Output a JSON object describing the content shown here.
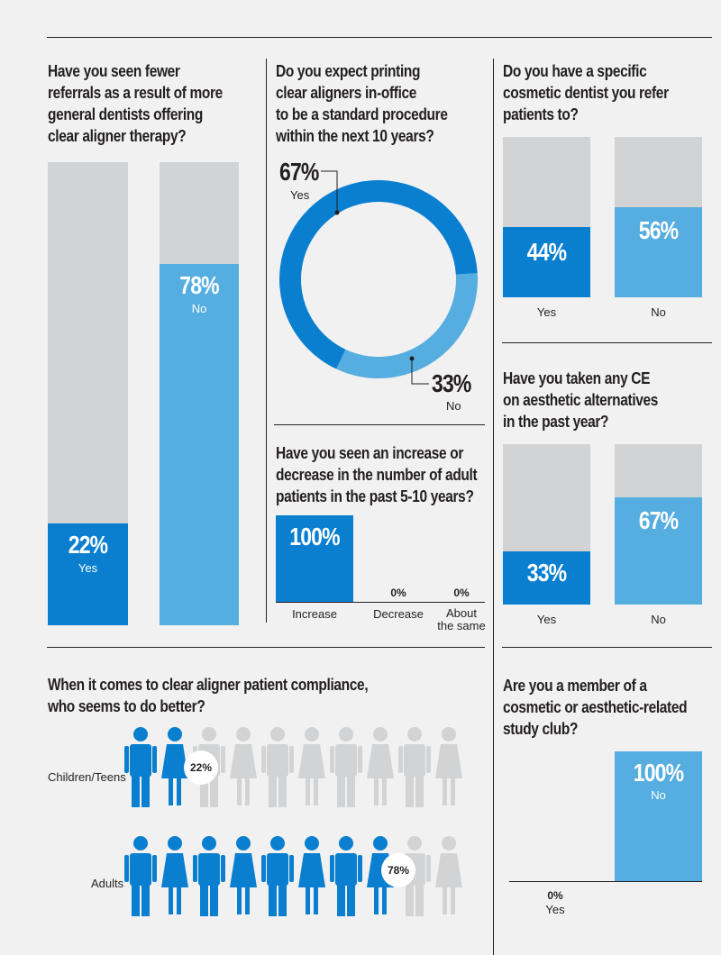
{
  "chart_data": [
    {
      "type": "bar",
      "title": "Have you seen fewer referrals as a result of more general dentists offering clear aligner therapy?",
      "title_lines": [
        "Have you seen fewer",
        "referrals as a result of more",
        "general dentists offering",
        "clear aligner therapy?"
      ],
      "categories": [
        "Yes",
        "No"
      ],
      "values": [
        22,
        78
      ],
      "labels": [
        "22%",
        "78%"
      ],
      "ylim": [
        0,
        100
      ]
    },
    {
      "type": "pie",
      "title": "Do you expect printing clear aligners in-office to be a standard procedure within the next 10 years?",
      "title_lines": [
        "Do you expect printing",
        "clear aligners in-office",
        "to be a standard procedure",
        "within the next 10 years?"
      ],
      "categories": [
        "Yes",
        "No"
      ],
      "values": [
        67,
        33
      ],
      "labels": [
        "67%",
        "33%"
      ]
    },
    {
      "type": "bar",
      "title": "Do you have a specific cosmetic dentist you refer patients to?",
      "title_lines": [
        "Do you have a specific",
        "cosmetic dentist you refer",
        "patients to?"
      ],
      "categories": [
        "Yes",
        "No"
      ],
      "values": [
        44,
        56
      ],
      "labels": [
        "44%",
        "56%"
      ],
      "ylim": [
        0,
        100
      ]
    },
    {
      "type": "bar",
      "title": "Have you seen an increase or decrease in the number of adult patients in the past 5-10 years?",
      "title_lines": [
        "Have you seen an increase or",
        "decrease in the number of adult",
        "patients in the past 5-10 years?"
      ],
      "categories": [
        "Increase",
        "Decrease",
        "About the same"
      ],
      "category_lines": [
        [
          "Increase"
        ],
        [
          "Decrease"
        ],
        [
          "About",
          "the same"
        ]
      ],
      "values": [
        100,
        0,
        0
      ],
      "labels": [
        "100%",
        "0%",
        "0%"
      ],
      "ylim": [
        0,
        100
      ]
    },
    {
      "type": "bar",
      "title": "Have you taken any CE on aesthetic alternatives in the past year?",
      "title_lines": [
        "Have you taken any CE",
        "on aesthetic alternatives",
        "in the past year?"
      ],
      "categories": [
        "Yes",
        "No"
      ],
      "values": [
        33,
        67
      ],
      "labels": [
        "33%",
        "67%"
      ],
      "ylim": [
        0,
        100
      ]
    },
    {
      "type": "bar",
      "title": "When it comes to clear aligner patient compliance, who seems to do better?",
      "title_lines": [
        "When it comes to clear aligner patient compliance,",
        "who seems to do better?"
      ],
      "categories": [
        "Children/Teens",
        "Adults"
      ],
      "values": [
        22,
        78
      ],
      "labels": [
        "22%",
        "78%"
      ],
      "icons_total": 10
    },
    {
      "type": "bar",
      "title": "Are you a member of a cosmetic or aesthetic-related study club?",
      "title_lines": [
        "Are you a member of a",
        "cosmetic or aesthetic-related",
        "study club?"
      ],
      "categories": [
        "Yes",
        "No"
      ],
      "values": [
        0,
        100
      ],
      "labels": [
        "0%",
        "100%"
      ],
      "ylim": [
        0,
        100
      ]
    }
  ],
  "colors": {
    "background": "#f1f1f2",
    "bar_background": "#d1d3d4",
    "blue_dark": "#0a7fd0",
    "blue_light": "#56ade0",
    "text": "#231f20"
  },
  "icons": {
    "person": "person-icon"
  }
}
